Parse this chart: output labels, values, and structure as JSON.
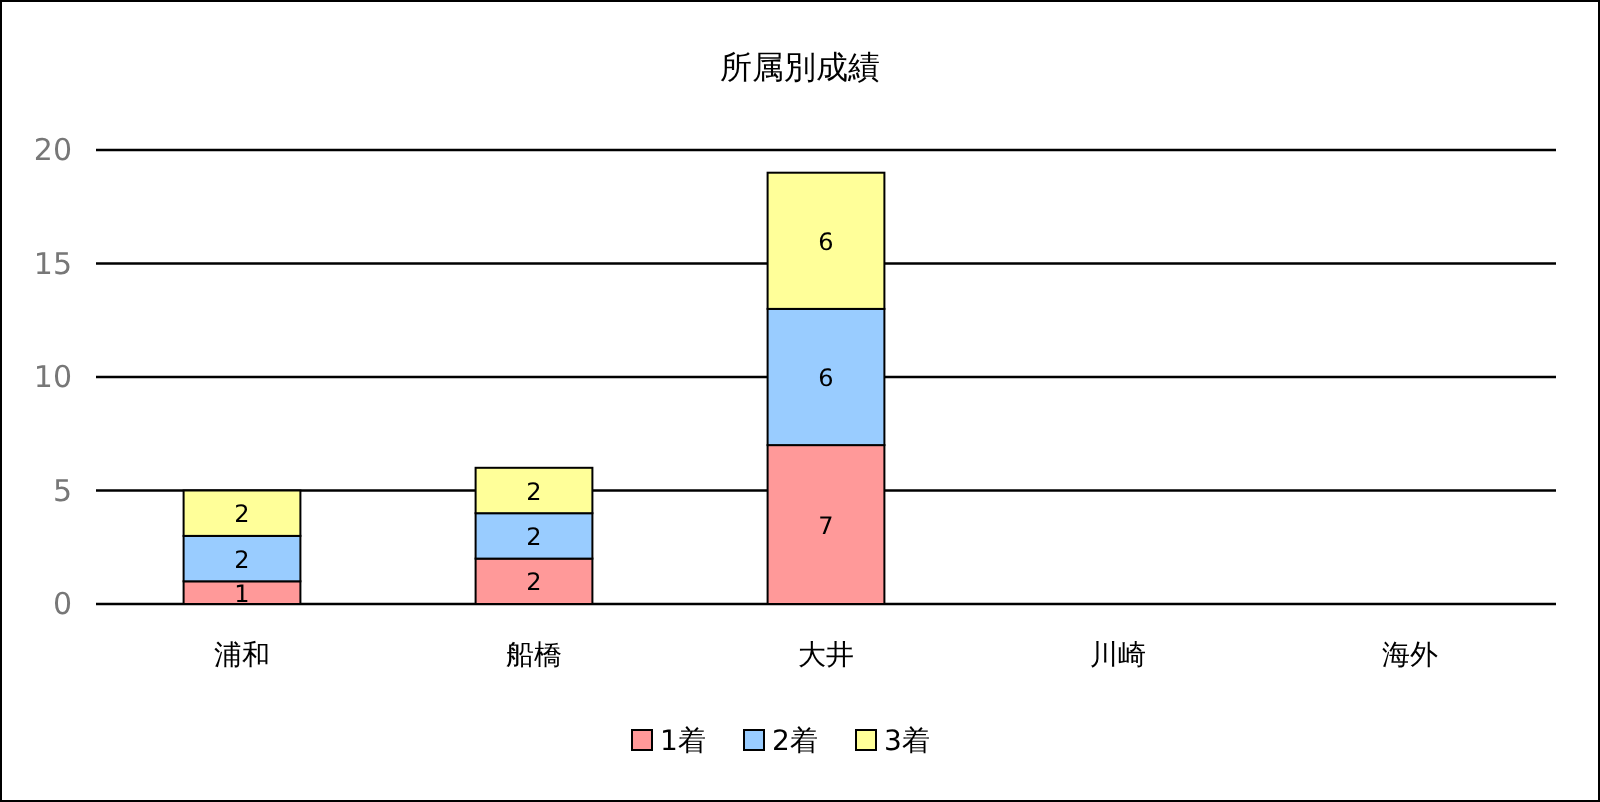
{
  "chart_data": {
    "type": "bar",
    "title": "所属別成績",
    "categories": [
      "浦和",
      "船橋",
      "大井",
      "川崎",
      "海外"
    ],
    "series": [
      {
        "name": "1着",
        "color": "#ff9999",
        "values": [
          1,
          2,
          7,
          null,
          null
        ]
      },
      {
        "name": "2着",
        "color": "#99ccff",
        "values": [
          2,
          2,
          6,
          null,
          null
        ]
      },
      {
        "name": "3着",
        "color": "#ffff99",
        "values": [
          2,
          2,
          6,
          null,
          null
        ]
      }
    ],
    "stacked": true,
    "ylim": [
      0,
      20
    ],
    "yticks": [
      0,
      5,
      10,
      15,
      20
    ],
    "grid": "y",
    "data_labels": true,
    "legend": "bottom"
  }
}
